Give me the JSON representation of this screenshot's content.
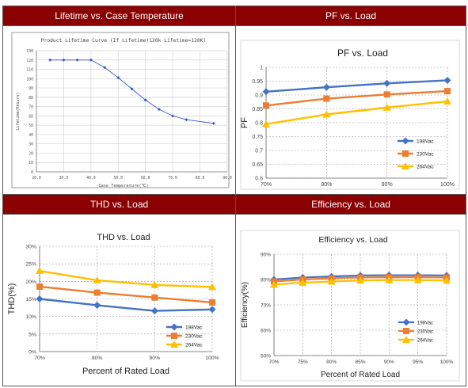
{
  "headers": {
    "lifetime": "Lifetime vs. Case Temperature",
    "pf": "PF vs. Load",
    "thd": "THD vs. Load",
    "efficiency": "Efficiency vs. Load"
  },
  "chart_data": [
    {
      "id": "lifetime",
      "type": "line",
      "title": "Product Lifetime Curve (If Lifetime)120k Lifetime=120K)",
      "xlabel": "Case Temperature(℃)",
      "ylabel": "Lifetime(Khours)",
      "xlim": [
        20,
        90
      ],
      "ylim": [
        0,
        130
      ],
      "xticks": [
        20,
        30,
        40,
        50,
        60,
        70,
        80,
        90
      ],
      "xtick_labels": [
        "20.0",
        "30.0",
        "40.0",
        "50.0",
        "60.0",
        "70.0",
        "80.0",
        "90.0"
      ],
      "yticks": [
        0,
        10,
        20,
        30,
        40,
        50,
        60,
        70,
        80,
        90,
        100,
        110,
        120,
        130
      ],
      "series": [
        {
          "x": [
            25,
            30,
            35,
            40,
            45,
            50,
            55,
            60,
            65,
            70,
            75,
            85
          ],
          "y": [
            120,
            120,
            120,
            120,
            112,
            101,
            89,
            77,
            67,
            60,
            56,
            52
          ]
        }
      ],
      "grid": true,
      "color": "#3355cc"
    },
    {
      "id": "pf",
      "type": "line",
      "title": "PF vs. Load",
      "xlabel": "",
      "ylabel": "PF",
      "categories": [
        "70%",
        "80%",
        "90%",
        "100%"
      ],
      "ylim": [
        0.6,
        1.0
      ],
      "yticks": [
        0.6,
        0.65,
        0.7,
        0.75,
        0.8,
        0.85,
        0.9,
        0.95,
        1
      ],
      "ytick_labels": [
        "0.6",
        "0.65",
        "0.7",
        "0.75",
        "0.8",
        "0.85",
        "0.9",
        "0.95",
        "1"
      ],
      "series": [
        {
          "name": "198Vac",
          "values": [
            0.912,
            0.928,
            0.942,
            0.953
          ],
          "color": "#4472c4",
          "marker": "diamond"
        },
        {
          "name": "230Vac",
          "values": [
            0.862,
            0.887,
            0.902,
            0.914
          ],
          "color": "#ed7d31",
          "marker": "square"
        },
        {
          "name": "264Vac",
          "values": [
            0.795,
            0.83,
            0.855,
            0.877
          ],
          "color": "#ffc000",
          "marker": "triangle"
        }
      ],
      "legend": "bottom-right",
      "grid": true
    },
    {
      "id": "thd",
      "type": "line",
      "title": "THD vs. Load",
      "xlabel": "Percent of Rated Load",
      "ylabel": "THD(%)",
      "categories": [
        "70%",
        "80%",
        "90%",
        "100%"
      ],
      "ylim": [
        0,
        30
      ],
      "yticks": [
        0,
        5,
        10,
        15,
        20,
        25,
        30
      ],
      "ytick_labels": [
        "0%",
        "5%",
        "10%",
        "15%",
        "20%",
        "25%",
        "30%"
      ],
      "series": [
        {
          "name": "198Vac",
          "values": [
            15.0,
            13.2,
            11.6,
            12.0
          ],
          "color": "#4472c4",
          "marker": "diamond"
        },
        {
          "name": "230Vac",
          "values": [
            18.5,
            16.8,
            15.4,
            14.0
          ],
          "color": "#ed7d31",
          "marker": "square"
        },
        {
          "name": "264Vac",
          "values": [
            23.0,
            20.3,
            19.0,
            18.4
          ],
          "color": "#ffc000",
          "marker": "triangle"
        }
      ],
      "legend": "bottom-right",
      "grid": true
    },
    {
      "id": "efficiency",
      "type": "line",
      "title": "Efficiency vs. Load",
      "xlabel": "Percent of  Rated Load",
      "ylabel": "Efficiency(%)",
      "categories": [
        "70%",
        "75%",
        "80%",
        "85%",
        "90%",
        "95%",
        "100%"
      ],
      "ylim": [
        50,
        90
      ],
      "yticks": [
        50,
        60,
        70,
        80,
        90
      ],
      "ytick_labels": [
        "50%",
        "60%",
        "70%",
        "80%",
        "90%"
      ],
      "series": [
        {
          "name": "198Vac",
          "values": [
            80.0,
            80.8,
            81.2,
            81.6,
            81.7,
            81.7,
            81.6
          ],
          "color": "#4472c4",
          "marker": "diamond"
        },
        {
          "name": "230Vac",
          "values": [
            79.2,
            80.0,
            80.5,
            80.8,
            80.9,
            80.9,
            80.8
          ],
          "color": "#ed7d31",
          "marker": "square"
        },
        {
          "name": "264Vac",
          "values": [
            78.0,
            78.8,
            79.2,
            79.6,
            79.8,
            79.8,
            79.6
          ],
          "color": "#ffc000",
          "marker": "triangle"
        }
      ],
      "legend": "bottom-right",
      "grid": true
    }
  ]
}
